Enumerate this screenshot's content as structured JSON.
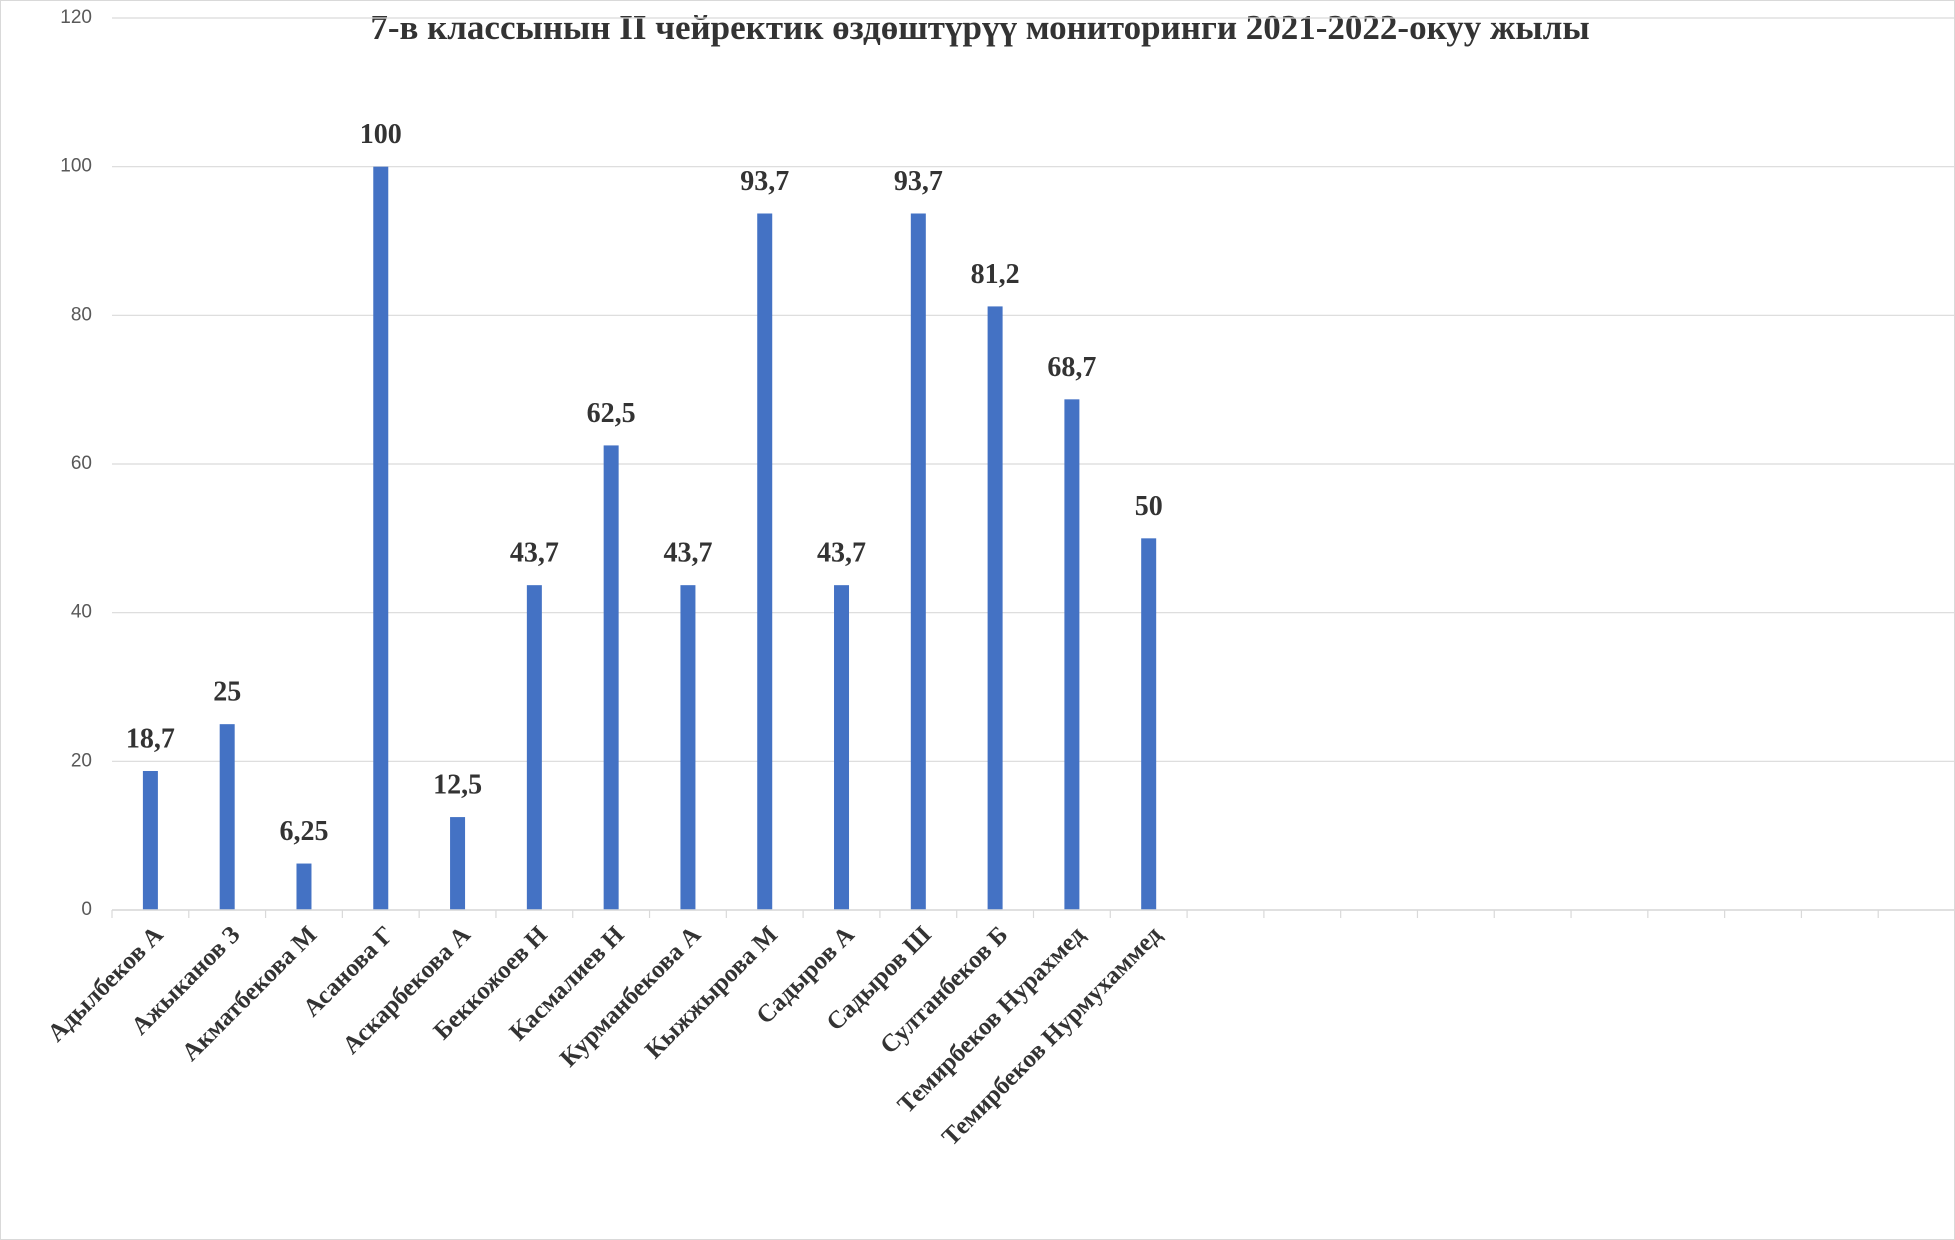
{
  "chart_data": {
    "type": "bar",
    "title": "7-в классынын II чейректик өздөштүрүү мониторинги 2021-2022-окуу жылы",
    "categories": [
      "Адылбеков А",
      "Ажыканов З",
      "Акматбекова М",
      "Асанова Г",
      "Аскарбекова А",
      "Беккожоев Н",
      "Касмалиев Н",
      "Курманбекова А",
      "Кыжжырова М",
      "Садыров А",
      "Садыров Ш",
      "Султанбеков  Б",
      "Темирбеков Нурахмед",
      "Темирбеков Нурмухаммед",
      null,
      null,
      null,
      null,
      null,
      null,
      null,
      null,
      null,
      null
    ],
    "values": [
      18.7,
      25,
      6.25,
      100,
      12.5,
      43.7,
      62.5,
      43.7,
      93.7,
      43.7,
      93.7,
      81.2,
      68.7,
      50,
      null,
      null,
      null,
      null,
      null,
      null,
      null,
      null,
      null,
      null
    ],
    "value_labels": [
      "18,7",
      "25",
      "6,25",
      "100",
      "12,5",
      "43,7",
      "62,5",
      "43,7",
      "93,7",
      "43,7",
      "93,7",
      "81,2",
      "68,7",
      "50",
      null,
      null,
      null,
      null,
      null,
      null,
      null,
      null,
      null,
      null
    ],
    "color": "#4472c4",
    "ylim": [
      0,
      120
    ],
    "yticks": [
      0,
      20,
      40,
      60,
      80,
      100,
      120
    ],
    "grid": true
  }
}
